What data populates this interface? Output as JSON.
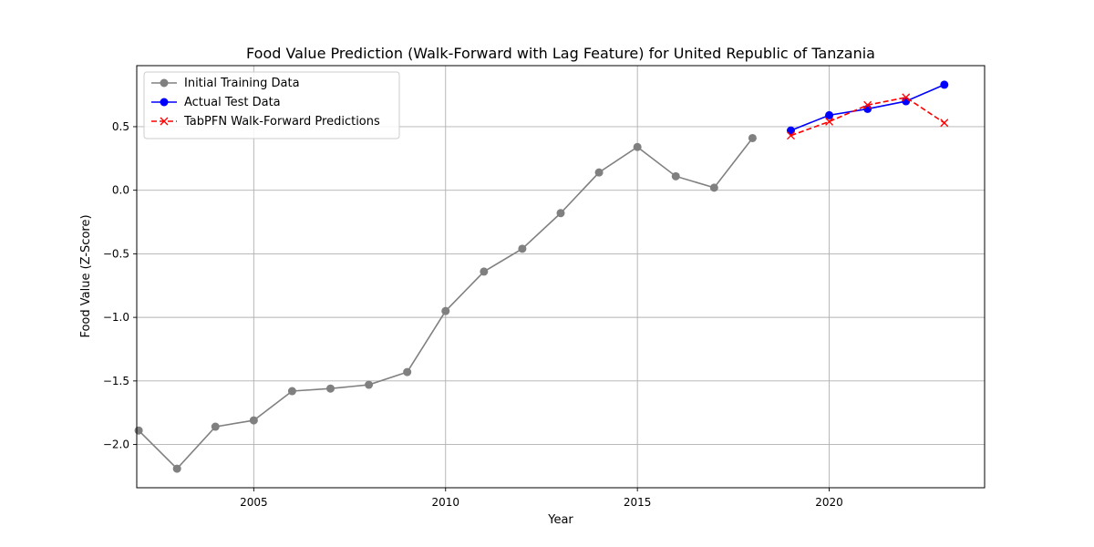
{
  "chart_data": {
    "type": "line",
    "title": "Food Value Prediction (Walk-Forward with Lag Feature) for United Republic of Tanzania",
    "xlabel": "Year",
    "ylabel": "Food Value (Z-Score)",
    "xlim": [
      2001.95,
      2024.05
    ],
    "ylim": [
      -2.34,
      0.98
    ],
    "xticks": [
      2005,
      2010,
      2015,
      2020
    ],
    "yticks": [
      -2.0,
      -1.5,
      -1.0,
      -0.5,
      0.0,
      0.5
    ],
    "grid": true,
    "legend_position": "top-left",
    "series": [
      {
        "name": "Initial Training Data",
        "color": "#808080",
        "line_style": "solid",
        "marker": "circle",
        "x": [
          2002,
          2003,
          2004,
          2005,
          2006,
          2007,
          2008,
          2009,
          2010,
          2011,
          2012,
          2013,
          2014,
          2015,
          2016,
          2017,
          2018
        ],
        "y": [
          -1.89,
          -2.19,
          -1.86,
          -1.81,
          -1.58,
          -1.56,
          -1.53,
          -1.43,
          -0.95,
          -0.64,
          -0.46,
          -0.18,
          0.14,
          0.34,
          0.11,
          0.02,
          0.41
        ]
      },
      {
        "name": "Actual Test Data",
        "color": "#0000ff",
        "line_style": "solid",
        "marker": "circle",
        "x": [
          2019,
          2020,
          2021,
          2022,
          2023
        ],
        "y": [
          0.47,
          0.59,
          0.64,
          0.7,
          0.83
        ]
      },
      {
        "name": "TabPFN Walk-Forward Predictions",
        "color": "#ff0000",
        "line_style": "dashed",
        "marker": "x",
        "x": [
          2019,
          2020,
          2021,
          2022,
          2023
        ],
        "y": [
          0.43,
          0.54,
          0.67,
          0.73,
          0.53
        ]
      }
    ]
  }
}
